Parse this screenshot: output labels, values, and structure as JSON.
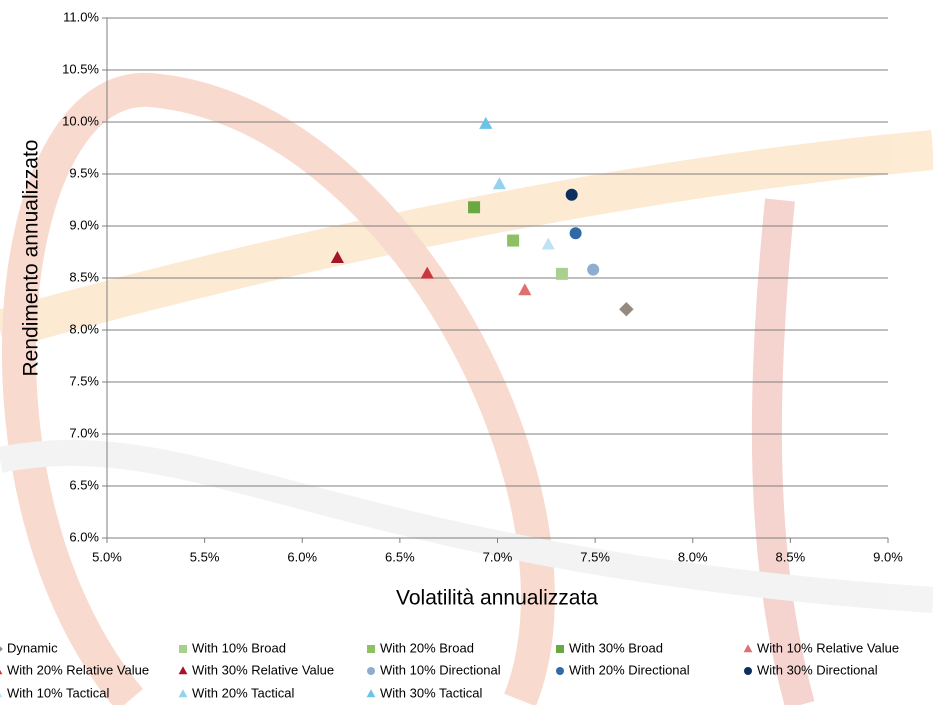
{
  "chart_data": {
    "type": "scatter",
    "x_label": "Volatilità annualizzata",
    "y_label": "Rendimento annualizzato",
    "xlim": [
      5.0,
      9.0
    ],
    "xticks": [
      {
        "value": 5.0,
        "label": "5.0%"
      },
      {
        "value": 5.5,
        "label": "5.5%"
      },
      {
        "value": 6.0,
        "label": "6.0%"
      },
      {
        "value": 6.5,
        "label": "6.5%"
      },
      {
        "value": 7.0,
        "label": "7.0%"
      },
      {
        "value": 7.5,
        "label": "7.5%"
      },
      {
        "value": 8.0,
        "label": "8.0%"
      },
      {
        "value": 8.5,
        "label": "8.5%"
      },
      {
        "value": 9.0,
        "label": "9.0%"
      }
    ],
    "ylim": [
      6.0,
      11.0
    ],
    "yticks": [
      {
        "value": 6.0,
        "label": "6.0%"
      },
      {
        "value": 6.5,
        "label": "6.5%"
      },
      {
        "value": 7.0,
        "label": "7.0%"
      },
      {
        "value": 7.5,
        "label": "7.5%"
      },
      {
        "value": 8.0,
        "label": "8.0%"
      },
      {
        "value": 8.5,
        "label": "8.5%"
      },
      {
        "value": 9.0,
        "label": "9.0%"
      },
      {
        "value": 9.5,
        "label": "9.5%"
      },
      {
        "value": 10.0,
        "label": "10.0%"
      },
      {
        "value": 10.5,
        "label": "10.5%"
      },
      {
        "value": 11.0,
        "label": "11.0%"
      }
    ],
    "grid": true,
    "series": [
      {
        "name": "Dynamic",
        "color": "#948a80",
        "marker": "diamond",
        "x": [
          7.66
        ],
        "values": [
          8.2
        ]
      },
      {
        "name": "With 10% Broad",
        "color": "#a9d18e",
        "marker": "square",
        "x": [
          7.33
        ],
        "values": [
          8.54
        ]
      },
      {
        "name": "With 20% Broad",
        "color": "#8cc063",
        "marker": "square",
        "x": [
          7.08
        ],
        "values": [
          8.86
        ]
      },
      {
        "name": "With 30% Broad",
        "color": "#6aa843",
        "marker": "square",
        "x": [
          6.88
        ],
        "values": [
          9.18
        ]
      },
      {
        "name": "With 10% Relative Value",
        "color": "#e07070",
        "marker": "triangle",
        "x": [
          7.14
        ],
        "values": [
          8.38
        ]
      },
      {
        "name": "With 20% Relative Value",
        "color": "#c8373c",
        "marker": "triangle",
        "x": [
          6.64
        ],
        "values": [
          8.54
        ]
      },
      {
        "name": "With 30% Relative Value",
        "color": "#a3162a",
        "marker": "triangle",
        "x": [
          6.18
        ],
        "values": [
          8.69
        ]
      },
      {
        "name": "With 10% Directional",
        "color": "#8eaed0",
        "marker": "circle",
        "x": [
          7.49
        ],
        "values": [
          8.58
        ]
      },
      {
        "name": "With 20% Directional",
        "color": "#2f6aa6",
        "marker": "circle",
        "x": [
          7.4
        ],
        "values": [
          8.93
        ]
      },
      {
        "name": "With 30% Directional",
        "color": "#0b2f5e",
        "marker": "circle",
        "x": [
          7.38
        ],
        "values": [
          9.3
        ]
      },
      {
        "name": "With 10% Tactical",
        "color": "#bfe3f4",
        "marker": "triangle",
        "x": [
          7.26
        ],
        "values": [
          8.82
        ]
      },
      {
        "name": "With 20% Tactical",
        "color": "#94d2ee",
        "marker": "triangle",
        "x": [
          7.01
        ],
        "values": [
          9.4
        ]
      },
      {
        "name": "With 30% Tactical",
        "color": "#6cc3e8",
        "marker": "triangle",
        "x": [
          6.94
        ],
        "values": [
          9.98
        ]
      }
    ]
  }
}
